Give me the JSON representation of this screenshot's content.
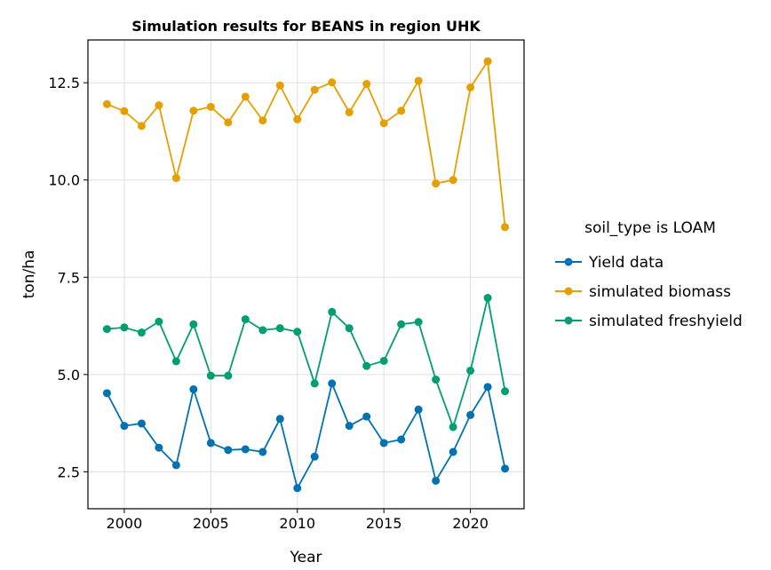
{
  "chart_data": {
    "type": "line",
    "title": "Simulation results for BEANS in region UHK",
    "xlabel": "Year",
    "ylabel": "ton/ha",
    "xlim": [
      1997.9,
      2023.1
    ],
    "ylim": [
      1.55,
      13.6
    ],
    "xticks": [
      2000,
      2005,
      2010,
      2015,
      2020
    ],
    "yticks": [
      2.5,
      5.0,
      7.5,
      10.0,
      12.5
    ],
    "xtick_labels": [
      "2000",
      "2005",
      "2010",
      "2015",
      "2020"
    ],
    "ytick_labels": [
      "2.5",
      "5.0",
      "7.5",
      "10.0",
      "12.5"
    ],
    "grid": true,
    "legend_title": "soil_type is LOAM",
    "legend_position": "right",
    "x": [
      1999,
      2000,
      2001,
      2002,
      2003,
      2004,
      2005,
      2006,
      2007,
      2008,
      2009,
      2010,
      2011,
      2012,
      2013,
      2014,
      2015,
      2016,
      2017,
      2018,
      2019,
      2020,
      2021,
      2022
    ],
    "series": [
      {
        "name": "Yield data",
        "color": "#0072b2",
        "values": [
          4.52,
          3.68,
          3.74,
          3.12,
          2.67,
          4.62,
          3.24,
          3.06,
          3.08,
          3.01,
          3.86,
          2.08,
          2.89,
          4.77,
          3.68,
          3.92,
          3.24,
          3.33,
          4.1,
          2.27,
          3.01,
          3.96,
          4.68,
          2.58
        ]
      },
      {
        "name": "simulated biomass",
        "color": "#e69f00",
        "values": [
          11.95,
          11.77,
          11.39,
          11.92,
          10.05,
          11.78,
          11.88,
          11.48,
          12.14,
          11.53,
          12.43,
          11.56,
          12.32,
          12.51,
          11.74,
          12.47,
          11.46,
          11.78,
          12.55,
          9.91,
          10.0,
          12.38,
          13.05,
          8.79
        ]
      },
      {
        "name": "simulated freshyield",
        "color": "#009e73",
        "values": [
          6.17,
          6.21,
          6.08,
          6.36,
          5.34,
          6.29,
          4.97,
          4.97,
          6.42,
          6.14,
          6.19,
          6.1,
          4.77,
          6.61,
          6.19,
          5.22,
          5.35,
          6.29,
          6.35,
          4.87,
          3.65,
          5.1,
          6.97,
          4.57
        ]
      }
    ]
  }
}
